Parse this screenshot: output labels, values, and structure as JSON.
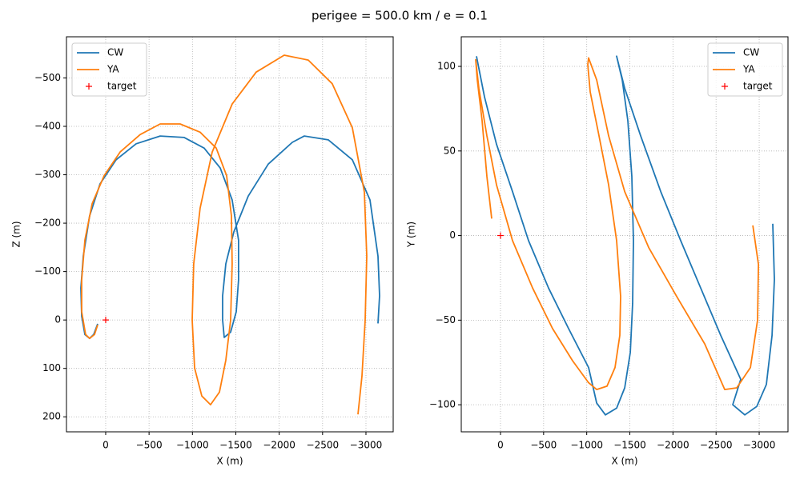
{
  "title": "perigee = 500.0 km / e = 0.1",
  "chart_data": [
    {
      "type": "line",
      "xlabel": "X (m)",
      "ylabel": "Z (m)",
      "xlim": [
        452,
        -3314
      ],
      "ylim": [
        231,
        -585
      ],
      "xticks": [
        0,
        {
          "value": -500,
          "label": "−500"
        },
        {
          "value": -1000,
          "label": "−1000"
        },
        {
          "value": -1500,
          "label": "−1500"
        },
        {
          "value": -2000,
          "label": "−2000"
        },
        {
          "value": -2500,
          "label": "−2500"
        },
        {
          "value": -3000,
          "label": "−3000"
        }
      ],
      "yticks": [
        {
          "value": -500,
          "label": "−500"
        },
        {
          "value": -400,
          "label": "−400"
        },
        {
          "value": -300,
          "label": "−300"
        },
        {
          "value": -200,
          "label": "−200"
        },
        {
          "value": -100,
          "label": "−100"
        },
        0,
        100,
        200
      ],
      "grid": true,
      "legend": "upper left",
      "series": [
        {
          "name": "CW",
          "color": "#1f77b4",
          "x": [
            92,
            138,
            185,
            240,
            277,
            286,
            258,
            185,
            65,
            -120,
            -351,
            -628,
            -905,
            -1135,
            -1320,
            -1458,
            -1532,
            -1532,
            -1505,
            -1440,
            -1366,
            -1348,
            -1348,
            -1385,
            -1477,
            -1643,
            -1874,
            -2151,
            -2289,
            -2566,
            -2843,
            -3046,
            -3139,
            -3157,
            -3139
          ],
          "values": [
            8,
            30,
            38,
            30,
            -8,
            -66,
            -132,
            -215,
            -281,
            -331,
            -364,
            -380,
            -377,
            -355,
            -314,
            -248,
            -165,
            -83,
            -17,
            25,
            36,
            0,
            -50,
            -116,
            -182,
            -256,
            -322,
            -367,
            -380,
            -372,
            -331,
            -248,
            -132,
            -50,
            7
          ]
        },
        {
          "name": "YA",
          "color": "#ff7f0e",
          "x": [
            92,
            129,
            185,
            231,
            277,
            277,
            240,
            157,
            18,
            -166,
            -397,
            -628,
            -858,
            -1089,
            -1274,
            -1394,
            -1449,
            -1458,
            -1440,
            -1385,
            -1311,
            -1209,
            -1108,
            -1025,
            -997,
            -1015,
            -1089,
            -1228,
            -1458,
            -1735,
            -2058,
            -2335,
            -2612,
            -2843,
            -2982,
            -3009,
            -2991,
            -2954,
            -2908
          ],
          "values": [
            10,
            30,
            38,
            30,
            -17,
            -83,
            -165,
            -240,
            -298,
            -347,
            -383,
            -405,
            -405,
            -388,
            -355,
            -298,
            -215,
            -116,
            0,
            83,
            149,
            175,
            157,
            99,
            0,
            -116,
            -231,
            -347,
            -446,
            -512,
            -547,
            -537,
            -488,
            -397,
            -264,
            -132,
            0,
            116,
            195
          ]
        },
        {
          "name": "target",
          "color": "#ff0000",
          "marker": "+",
          "x": [
            0
          ],
          "values": [
            0
          ]
        }
      ]
    },
    {
      "type": "line",
      "xlabel": "X (m)",
      "ylabel": "Y (m)",
      "xlim": [
        455,
        -3334
      ],
      "ylim": [
        -116,
        117.5
      ],
      "xticks": [
        0,
        {
          "value": -500,
          "label": "−500"
        },
        {
          "value": -1000,
          "label": "−1000"
        },
        {
          "value": -1500,
          "label": "−1500"
        },
        {
          "value": -2000,
          "label": "−2000"
        },
        {
          "value": -2500,
          "label": "−2500"
        },
        {
          "value": -3000,
          "label": "−3000"
        }
      ],
      "yticks": [
        {
          "value": -100,
          "label": "−100"
        },
        {
          "value": -50,
          "label": "−50"
        },
        0,
        50,
        100
      ],
      "grid": true,
      "legend": "upper right",
      "series": [
        {
          "name": "CW",
          "color": "#1f77b4",
          "x": [
            279,
            186,
            46,
            -139,
            -325,
            -557,
            -789,
            -1022,
            -1115,
            -1217,
            -1347,
            -1440,
            -1505,
            -1532,
            -1542,
            -1523,
            -1477,
            -1412,
            -1347,
            -1440,
            -1625,
            -1858,
            -2090,
            -2322,
            -2554,
            -2786,
            -2693,
            -2833,
            -2972,
            -3083,
            -3149,
            -3176,
            -3158
          ],
          "values": [
            106,
            82,
            54,
            26,
            -3,
            -31,
            -55,
            -78,
            -99,
            -106,
            -102,
            -90,
            -69,
            -40,
            -3,
            35,
            68,
            92,
            106,
            87,
            59,
            26,
            -3,
            -31,
            -59,
            -85,
            -100,
            -106,
            -101,
            -88,
            -59,
            -26,
            7
          ]
        },
        {
          "name": "YA",
          "color": "#ff7f0e",
          "x": [
            102,
            158,
            214,
            269,
            288,
            251,
            158,
            46,
            -139,
            -372,
            -604,
            -836,
            -1022,
            -1115,
            -1235,
            -1328,
            -1384,
            -1393,
            -1347,
            -1254,
            -1142,
            -1040,
            -1012,
            -1022,
            -1115,
            -1254,
            -1440,
            -1718,
            -2043,
            -2368,
            -2600,
            -2740,
            -2898,
            -2981,
            -2991,
            -2926
          ],
          "values": [
            10,
            35,
            68,
            92,
            104,
            87,
            59,
            30,
            -3,
            -31,
            -55,
            -74,
            -87,
            -91,
            -89,
            -78,
            -59,
            -36,
            -3,
            30,
            59,
            85,
            101,
            105,
            92,
            59,
            26,
            -7,
            -36,
            -64,
            -91,
            -90,
            -78,
            -50,
            -17,
            6
          ]
        },
        {
          "name": "target",
          "color": "#ff0000",
          "marker": "+",
          "x": [
            0
          ],
          "values": [
            0
          ]
        }
      ]
    }
  ]
}
